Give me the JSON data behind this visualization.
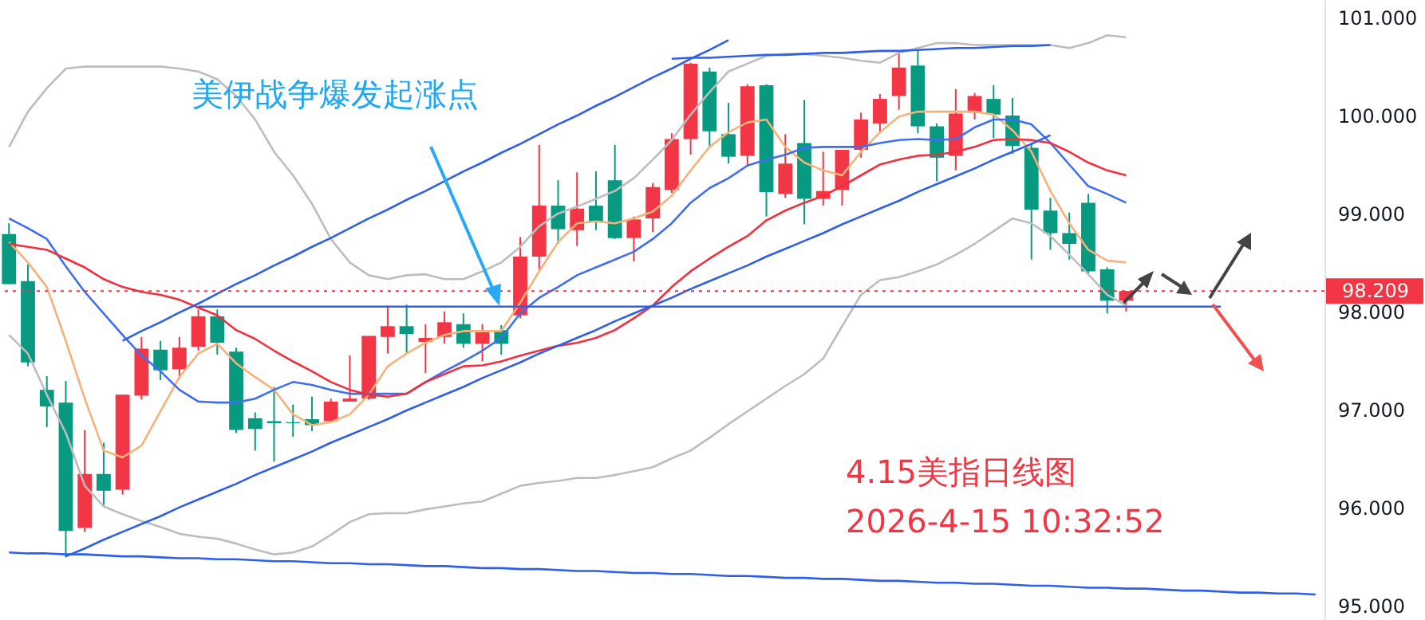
{
  "chart_data": {
    "type": "candlestick",
    "categories": [
      null,
      null,
      null,
      null,
      null,
      null,
      null,
      null,
      null,
      null,
      null,
      null,
      null,
      null,
      null,
      null,
      null,
      null,
      null,
      null,
      null,
      null,
      null,
      null,
      null,
      null,
      null,
      null,
      null,
      null,
      null,
      null,
      null,
      null,
      null,
      null,
      null,
      null,
      null,
      null,
      null,
      null,
      null,
      null,
      null,
      null,
      null,
      null,
      null,
      null,
      null,
      null,
      null,
      null,
      null,
      null,
      null,
      null,
      null,
      null,
      null,
      null,
      null,
      null,
      null,
      null,
      null,
      null,
      null,
      null
    ],
    "ohlc": [
      [
        98.79,
        98.9,
        98.28,
        98.28
      ],
      [
        98.31,
        98.48,
        97.44,
        97.48
      ],
      [
        97.2,
        97.34,
        96.82,
        97.03
      ],
      [
        97.07,
        97.29,
        95.49,
        95.76
      ],
      [
        95.79,
        96.79,
        95.75,
        96.34
      ],
      [
        96.34,
        96.66,
        96.02,
        96.17
      ],
      [
        96.18,
        97.15,
        96.13,
        97.15
      ],
      [
        97.14,
        97.74,
        97.1,
        97.62
      ],
      [
        97.61,
        97.7,
        97.3,
        97.4
      ],
      [
        97.41,
        97.74,
        97.31,
        97.63
      ],
      [
        97.64,
        98.02,
        97.6,
        97.95
      ],
      [
        97.95,
        98.02,
        97.56,
        97.68
      ],
      [
        97.59,
        97.63,
        96.76,
        96.79
      ],
      [
        96.91,
        96.97,
        96.58,
        96.8
      ],
      [
        96.88,
        97.23,
        96.47,
        96.86
      ],
      [
        96.87,
        97.05,
        96.72,
        96.86
      ],
      [
        96.9,
        97.13,
        96.78,
        96.84
      ],
      [
        96.88,
        97.11,
        96.86,
        97.08
      ],
      [
        97.08,
        97.55,
        97.08,
        97.11
      ],
      [
        97.11,
        97.75,
        97.1,
        97.75
      ],
      [
        97.74,
        98.06,
        97.57,
        97.85
      ],
      [
        97.85,
        98.07,
        97.57,
        97.77
      ],
      [
        97.69,
        97.87,
        97.37,
        97.73
      ],
      [
        97.74,
        98.0,
        97.67,
        97.89
      ],
      [
        97.87,
        97.98,
        97.63,
        97.67
      ],
      [
        97.67,
        97.87,
        97.49,
        97.79
      ],
      [
        97.81,
        97.86,
        97.56,
        97.67
      ],
      [
        97.96,
        98.76,
        97.93,
        98.56
      ],
      [
        98.56,
        99.7,
        98.43,
        99.08
      ],
      [
        99.08,
        99.34,
        98.69,
        98.84
      ],
      [
        98.83,
        99.42,
        98.67,
        99.05
      ],
      [
        99.08,
        99.43,
        98.83,
        98.91
      ],
      [
        99.34,
        99.7,
        98.74,
        98.75
      ],
      [
        98.75,
        98.97,
        98.51,
        98.94
      ],
      [
        98.95,
        99.31,
        98.81,
        99.27
      ],
      [
        99.24,
        99.82,
        99.21,
        99.76
      ],
      [
        99.76,
        100.54,
        99.6,
        100.53
      ],
      [
        100.45,
        100.49,
        99.67,
        99.84
      ],
      [
        99.81,
        100.13,
        99.51,
        99.58
      ],
      [
        99.59,
        100.32,
        99.49,
        100.3
      ],
      [
        100.31,
        100.32,
        98.97,
        99.22
      ],
      [
        99.2,
        99.81,
        99.16,
        99.51
      ],
      [
        99.72,
        100.16,
        98.89,
        99.15
      ],
      [
        99.15,
        99.63,
        99.08,
        99.23
      ],
      [
        99.24,
        99.65,
        99.08,
        99.65
      ],
      [
        99.65,
        100.03,
        99.57,
        99.96
      ],
      [
        99.92,
        100.22,
        99.82,
        100.17
      ],
      [
        100.2,
        100.64,
        100.06,
        100.49
      ],
      [
        100.51,
        100.66,
        99.82,
        99.89
      ],
      [
        99.89,
        99.92,
        99.33,
        99.57
      ],
      [
        99.59,
        100.27,
        99.44,
        100.02
      ],
      [
        100.03,
        100.23,
        99.96,
        100.2
      ],
      [
        100.17,
        100.31,
        99.77,
        100.01
      ],
      [
        100.0,
        100.18,
        99.61,
        99.69
      ],
      [
        99.67,
        99.72,
        98.53,
        99.04
      ],
      [
        99.03,
        99.16,
        98.63,
        98.8
      ],
      [
        98.8,
        99.01,
        98.53,
        98.69
      ],
      [
        99.11,
        99.2,
        98.37,
        98.41
      ],
      [
        98.43,
        98.45,
        97.98,
        98.11
      ],
      [
        98.11,
        98.209,
        98.0,
        98.209
      ],
      null,
      null,
      null,
      null,
      null,
      null,
      null,
      null,
      null,
      null
    ],
    "colors": [
      "#089981",
      "#089981",
      "#089981",
      "#089981",
      "#f23645",
      "#089981",
      "#f23645",
      "#f23645",
      "#089981",
      "#f23645",
      "#f23645",
      "#089981",
      "#089981",
      "#089981",
      "#089981",
      "#089981",
      "#089981",
      "#f23645",
      "#f23645",
      "#f23645",
      "#f23645",
      "#089981",
      "#f23645",
      "#f23645",
      "#089981",
      "#f23645",
      "#089981",
      "#f23645",
      "#f23645",
      "#089981",
      "#f23645",
      "#089981",
      "#089981",
      "#f23645",
      "#f23645",
      "#f23645",
      "#f23645",
      "#089981",
      "#089981",
      "#f23645",
      "#089981",
      "#f23645",
      "#089981",
      "#f23645",
      "#f23645",
      "#f23645",
      "#f23645",
      "#f23645",
      "#089981",
      "#089981",
      "#f23645",
      "#f23645",
      "#089981",
      "#089981",
      "#089981",
      "#089981",
      "#089981",
      "#089981",
      "#089981",
      "#f23645",
      null,
      null,
      null,
      null,
      null,
      null,
      null,
      null,
      null,
      null
    ],
    "series": [
      {
        "type": "line",
        "color": "#bdbdbd",
        "values": [
          99.68,
          100.04,
          100.28,
          100.48,
          100.5,
          100.5,
          100.5,
          100.5,
          100.5,
          100.48,
          100.45,
          100.37,
          100.2,
          99.96,
          99.63,
          99.39,
          99.1,
          98.74,
          98.5,
          98.37,
          98.33,
          98.37,
          98.38,
          98.33,
          98.33,
          98.41,
          98.5,
          98.66,
          98.87,
          99.0,
          99.07,
          99.15,
          99.23,
          99.36,
          99.55,
          99.75,
          100.01,
          100.24,
          100.45,
          100.53,
          100.61,
          100.63,
          100.63,
          100.61,
          100.59,
          100.56,
          100.54,
          100.64,
          100.69,
          100.74,
          100.74,
          100.72,
          100.72,
          100.72,
          100.72,
          100.72,
          100.69,
          100.74,
          100.82,
          100.8,
          null,
          null,
          null,
          null,
          null,
          null,
          null,
          null,
          null,
          null
        ]
      },
      {
        "type": "line",
        "color": "#bdbdbd",
        "values": [
          97.76,
          97.57,
          97.15,
          96.76,
          96.22,
          96.01,
          95.93,
          95.86,
          95.8,
          95.73,
          95.7,
          95.68,
          95.63,
          95.57,
          95.52,
          95.54,
          95.6,
          95.72,
          95.85,
          95.93,
          95.94,
          95.94,
          95.98,
          96.01,
          96.04,
          96.06,
          96.14,
          96.22,
          96.25,
          96.27,
          96.3,
          96.3,
          96.33,
          96.37,
          96.41,
          96.5,
          96.58,
          96.71,
          96.85,
          96.98,
          97.11,
          97.24,
          97.36,
          97.52,
          97.85,
          98.17,
          98.32,
          98.35,
          98.41,
          98.48,
          98.58,
          98.69,
          98.82,
          98.95,
          98.9,
          98.77,
          98.58,
          98.38,
          98.17,
          98.06,
          null,
          null,
          null,
          null,
          null,
          null,
          null,
          null,
          null,
          null
        ]
      },
      {
        "type": "line",
        "color": "#f5b27a",
        "values": [
          98.71,
          98.5,
          98.25,
          97.7,
          97.11,
          96.58,
          96.51,
          96.63,
          96.98,
          97.33,
          97.57,
          97.67,
          97.47,
          97.33,
          97.2,
          96.95,
          96.84,
          96.87,
          96.95,
          97.15,
          97.44,
          97.57,
          97.68,
          97.76,
          97.8,
          97.8,
          97.8,
          98.09,
          98.41,
          98.71,
          98.9,
          98.92,
          98.9,
          98.95,
          99.02,
          99.18,
          99.44,
          99.68,
          99.83,
          99.93,
          99.96,
          99.68,
          99.52,
          99.44,
          99.39,
          99.63,
          99.83,
          99.99,
          100.04,
          100.04,
          100.04,
          100.04,
          100.01,
          99.85,
          99.63,
          99.23,
          98.9,
          98.63,
          98.52,
          98.5,
          null,
          null,
          null,
          null,
          null,
          null,
          null,
          null,
          null,
          null
        ]
      },
      {
        "type": "line",
        "color": "#3f6ff0",
        "values": [
          98.95,
          98.85,
          98.74,
          98.46,
          98.2,
          97.98,
          97.76,
          97.55,
          97.39,
          97.2,
          97.08,
          97.07,
          97.07,
          97.11,
          97.2,
          97.28,
          97.25,
          97.2,
          97.16,
          97.16,
          97.16,
          97.16,
          97.28,
          97.39,
          97.49,
          97.6,
          97.73,
          97.98,
          98.14,
          98.25,
          98.37,
          98.45,
          98.53,
          98.61,
          98.74,
          98.9,
          99.11,
          99.26,
          99.36,
          99.49,
          99.55,
          99.6,
          99.67,
          99.68,
          99.68,
          99.68,
          99.72,
          99.75,
          99.76,
          99.75,
          99.76,
          99.88,
          99.96,
          99.96,
          99.91,
          99.72,
          99.5,
          99.28,
          99.2,
          99.11,
          null,
          null,
          null,
          null,
          null,
          null,
          null,
          null,
          null,
          null
        ]
      },
      {
        "type": "line",
        "color": "#f0303f",
        "values": [
          98.69,
          98.66,
          98.63,
          98.54,
          98.45,
          98.33,
          98.25,
          98.2,
          98.17,
          98.12,
          98.04,
          97.96,
          97.81,
          97.72,
          97.6,
          97.49,
          97.39,
          97.28,
          97.2,
          97.15,
          97.13,
          97.16,
          97.28,
          97.36,
          97.44,
          97.45,
          97.49,
          97.55,
          97.6,
          97.65,
          97.68,
          97.73,
          97.81,
          97.93,
          98.06,
          98.25,
          98.41,
          98.54,
          98.66,
          98.77,
          98.93,
          99.03,
          99.11,
          99.18,
          99.28,
          99.39,
          99.5,
          99.55,
          99.59,
          99.6,
          99.63,
          99.68,
          99.75,
          99.76,
          99.75,
          99.72,
          99.63,
          99.52,
          99.44,
          99.39,
          null,
          null,
          null,
          null,
          null,
          null,
          null,
          null,
          null,
          null
        ]
      },
      {
        "type": "line",
        "color": "#2f5fe8",
        "values": [
          null,
          null,
          null,
          null,
          null,
          null,
          97.7,
          97.8,
          97.89,
          97.99,
          98.08,
          98.18,
          98.28,
          98.37,
          98.47,
          98.56,
          98.66,
          98.75,
          98.85,
          98.95,
          99.04,
          99.14,
          99.23,
          99.33,
          99.43,
          99.52,
          99.62,
          99.71,
          99.81,
          99.91,
          100.0,
          100.1,
          100.19,
          100.29,
          100.39,
          100.48,
          100.58,
          100.67,
          100.77,
          null,
          null,
          null,
          null,
          null,
          null,
          null,
          null,
          null,
          null,
          null,
          null,
          null,
          null,
          null,
          null,
          null,
          null,
          null,
          null,
          null,
          null,
          null,
          null,
          null,
          null,
          null,
          null,
          null,
          null,
          null
        ]
      },
      {
        "type": "line",
        "color": "#2f5fe8",
        "values": [
          null,
          null,
          null,
          95.5,
          95.58,
          95.67,
          95.75,
          95.83,
          95.91,
          96.0,
          96.08,
          96.16,
          96.24,
          96.33,
          96.41,
          96.49,
          96.57,
          96.66,
          96.74,
          96.82,
          96.9,
          96.99,
          97.07,
          97.15,
          97.23,
          97.32,
          97.4,
          97.48,
          97.57,
          97.65,
          97.73,
          97.81,
          97.9,
          97.98,
          98.06,
          98.14,
          98.23,
          98.31,
          98.39,
          98.47,
          98.56,
          98.64,
          98.72,
          98.8,
          98.89,
          98.97,
          99.05,
          99.13,
          99.22,
          99.3,
          99.38,
          99.46,
          99.55,
          99.63,
          99.71,
          99.8,
          null,
          null,
          null,
          null,
          null,
          null,
          null,
          null,
          null,
          null,
          null,
          null,
          null,
          null
        ]
      },
      {
        "type": "line",
        "color": "#2f5fe8",
        "values": [
          null,
          null,
          null,
          null,
          null,
          null,
          null,
          null,
          null,
          null,
          98.05,
          98.05,
          98.05,
          98.05,
          98.05,
          98.05,
          98.05,
          98.05,
          98.05,
          98.05,
          98.05,
          98.05,
          98.05,
          98.05,
          98.05,
          98.05,
          98.05,
          98.05,
          98.05,
          98.05,
          98.05,
          98.05,
          98.05,
          98.05,
          98.05,
          98.05,
          98.05,
          98.05,
          98.05,
          98.05,
          98.05,
          98.05,
          98.05,
          98.05,
          98.05,
          98.05,
          98.05,
          98.05,
          98.05,
          98.05,
          98.05,
          98.05,
          98.05,
          98.05,
          98.05,
          98.05,
          98.05,
          98.05,
          98.05,
          98.05,
          98.05,
          98.05,
          98.05,
          98.05,
          98.05,
          null,
          null,
          null,
          null,
          null
        ]
      },
      {
        "type": "line",
        "color": "#2f5fe8",
        "values": [
          null,
          null,
          null,
          null,
          null,
          null,
          null,
          null,
          null,
          null,
          null,
          null,
          null,
          null,
          null,
          null,
          null,
          null,
          null,
          null,
          null,
          null,
          null,
          null,
          null,
          null,
          null,
          null,
          null,
          null,
          null,
          null,
          null,
          null,
          null,
          100.58,
          100.59,
          100.59,
          100.6,
          100.61,
          100.62,
          100.62,
          100.63,
          100.64,
          100.64,
          100.65,
          100.66,
          100.66,
          100.67,
          100.68,
          100.69,
          100.69,
          100.7,
          100.71,
          100.71,
          100.72,
          null,
          null,
          null,
          null,
          null,
          null,
          null,
          null,
          null,
          null,
          null,
          null,
          null,
          null
        ]
      },
      {
        "type": "line",
        "color": "#2f5fe8",
        "values": [
          95.54,
          95.53,
          95.53,
          95.52,
          95.52,
          95.51,
          95.5,
          95.5,
          95.49,
          95.48,
          95.48,
          95.47,
          95.47,
          95.46,
          95.45,
          95.45,
          95.44,
          95.43,
          95.43,
          95.42,
          95.42,
          95.41,
          95.4,
          95.4,
          95.39,
          95.38,
          95.38,
          95.37,
          95.37,
          95.36,
          95.35,
          95.35,
          95.34,
          95.33,
          95.33,
          95.32,
          95.32,
          95.31,
          95.3,
          95.3,
          95.29,
          95.28,
          95.28,
          95.27,
          95.27,
          95.26,
          95.25,
          95.25,
          95.24,
          95.23,
          95.23,
          95.22,
          95.22,
          95.21,
          95.2,
          95.2,
          95.19,
          95.18,
          95.18,
          95.17,
          95.17,
          95.16,
          95.15,
          95.15,
          95.14,
          95.13,
          95.13,
          95.12,
          95.12,
          95.11
        ]
      }
    ],
    "ylim": [
      94.85,
      101.18
    ],
    "yticks": [
      {
        "value": 95,
        "label": "95.000"
      },
      {
        "value": 96,
        "label": "96.000"
      },
      {
        "value": 97,
        "label": "97.000"
      },
      {
        "value": 98,
        "label": "98.000"
      },
      {
        "value": 99,
        "label": "99.000"
      },
      {
        "value": 100,
        "label": "100.000"
      },
      {
        "value": 101,
        "label": "101.000"
      }
    ],
    "ref_lines": [
      {
        "axis": "y",
        "value": 98.209,
        "label": "98.209",
        "color": "#f23645",
        "line_style": "dotted"
      }
    ],
    "annotations": [
      "美伊战争爆发起涨点",
      "4.15美指日线图",
      "2026-4-15 10:32:52"
    ]
  }
}
